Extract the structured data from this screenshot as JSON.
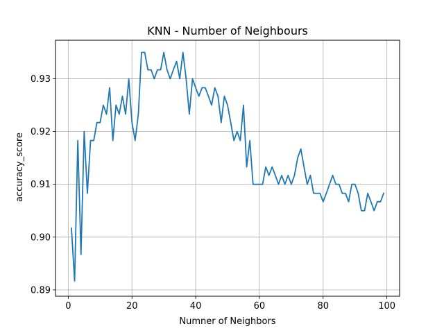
{
  "chart_data": {
    "type": "line",
    "title": "KNN - Number of Neighbours",
    "xlabel": "Numner of Neighbors",
    "ylabel": "accuracy_score",
    "xlim": [
      -4,
      104
    ],
    "ylim": [
      0.8888,
      0.9373
    ],
    "xticks": [
      0,
      20,
      40,
      60,
      80,
      100
    ],
    "xtick_labels": [
      "0",
      "20",
      "40",
      "60",
      "80",
      "100"
    ],
    "yticks": [
      0.89,
      0.9,
      0.91,
      0.92,
      0.93
    ],
    "ytick_labels": [
      "0.89",
      "0.90",
      "0.91",
      "0.92",
      "0.93"
    ],
    "grid": true,
    "line_color": "#1f77b4",
    "series": [
      {
        "x": [
          1,
          2,
          3,
          4,
          5,
          6,
          7,
          8,
          9,
          10,
          11,
          12,
          13,
          14,
          15,
          16,
          17,
          18,
          19,
          20,
          21,
          22,
          23,
          24,
          25,
          26,
          27,
          28,
          29,
          30,
          31,
          32,
          33,
          34,
          35,
          36,
          37,
          38,
          39,
          40,
          41,
          42,
          43,
          44,
          45,
          46,
          47,
          48,
          49,
          50,
          51,
          52,
          53,
          54,
          55,
          56,
          57,
          58,
          59,
          60,
          61,
          62,
          63,
          64,
          65,
          66,
          67,
          68,
          69,
          70,
          71,
          72,
          73,
          74,
          75,
          76,
          77,
          78,
          79,
          80,
          81,
          82,
          83,
          84,
          85,
          86,
          87,
          88,
          89,
          90,
          91,
          92,
          93,
          94,
          95,
          96,
          97,
          98,
          99
        ],
        "values": [
          0.9017,
          0.8917,
          0.9183,
          0.8967,
          0.92,
          0.9083,
          0.9183,
          0.9183,
          0.9217,
          0.9217,
          0.925,
          0.9233,
          0.9283,
          0.9183,
          0.925,
          0.9233,
          0.9267,
          0.9233,
          0.93,
          0.9217,
          0.9183,
          0.9233,
          0.935,
          0.935,
          0.9317,
          0.9317,
          0.93,
          0.9317,
          0.9317,
          0.935,
          0.9317,
          0.93,
          0.9317,
          0.9333,
          0.93,
          0.935,
          0.93,
          0.9233,
          0.93,
          0.9283,
          0.9267,
          0.9283,
          0.9283,
          0.9267,
          0.925,
          0.9283,
          0.9267,
          0.9217,
          0.9267,
          0.925,
          0.9217,
          0.9183,
          0.92,
          0.9183,
          0.925,
          0.9133,
          0.9183,
          0.91,
          0.91,
          0.91,
          0.91,
          0.9133,
          0.9117,
          0.9133,
          0.9117,
          0.91,
          0.9117,
          0.91,
          0.9117,
          0.91,
          0.9117,
          0.915,
          0.9167,
          0.9133,
          0.91,
          0.9117,
          0.9083,
          0.9083,
          0.9083,
          0.9067,
          0.9083,
          0.91,
          0.9117,
          0.91,
          0.91,
          0.9083,
          0.9083,
          0.9067,
          0.91,
          0.91,
          0.9083,
          0.905,
          0.905,
          0.9083,
          0.9067,
          0.905,
          0.9067,
          0.9067,
          0.9083
        ]
      }
    ]
  }
}
